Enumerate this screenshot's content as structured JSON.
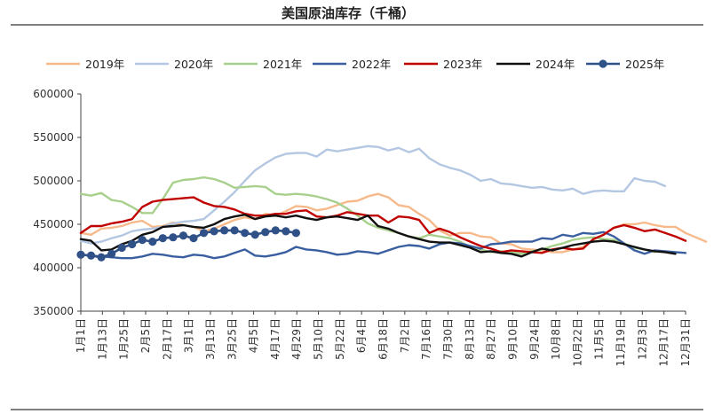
{
  "chart_data": {
    "type": "line",
    "title": "美国原油库存（千桶）",
    "xlabel": "",
    "ylabel": "",
    "ylim": [
      350000,
      600000
    ],
    "yticks": [
      350000,
      400000,
      450000,
      500000,
      550000,
      600000
    ],
    "ytick_labels": [
      "350000",
      "400000",
      "450000",
      "500000",
      "550000",
      "600000"
    ],
    "xtick_labels": [
      "1月1日",
      "1月13日",
      "1月25日",
      "2月5日",
      "2月17日",
      "3月1日",
      "3月13日",
      "3月25日",
      "4月5日",
      "4月17日",
      "4月29日",
      "5月10日",
      "5月22日",
      "6月4日",
      "6月18日",
      "7月2日",
      "7月16日",
      "7月30日",
      "8月13日",
      "8月27日",
      "9月10日",
      "9月24日",
      "10月8日",
      "10月22日",
      "11月5日",
      "11月19日",
      "12月3日",
      "12月17日",
      "12月31日"
    ],
    "x_unit": "week",
    "grid": false,
    "legend_position": "top",
    "series": [
      {
        "name": "2019年",
        "color": "#f7b98a",
        "marker": false,
        "values": [
          440000,
          438000,
          445000,
          446000,
          448000,
          452000,
          454000,
          447000,
          448000,
          452000,
          449000,
          447000,
          442000,
          445000,
          450000,
          455000,
          458000,
          456000,
          462000,
          460000,
          465000,
          471000,
          470000,
          466000,
          468000,
          472000,
          476000,
          477000,
          482000,
          485000,
          481000,
          472000,
          470000,
          462000,
          455000,
          443000,
          437000,
          440000,
          440000,
          436000,
          435000,
          428000,
          427000,
          422000,
          421000,
          420000,
          418000,
          418000,
          421000,
          424000,
          432000,
          438000,
          446000,
          450000,
          450000,
          452000,
          449000,
          447000,
          447000,
          440000,
          435000,
          430000
        ]
      },
      {
        "name": "2020年",
        "color": "#b4c7e2",
        "marker": false,
        "values": [
          431000,
          428000,
          430000,
          434000,
          437000,
          442000,
          444000,
          445000,
          447000,
          451000,
          453000,
          454000,
          456000,
          466000,
          476000,
          487000,
          500000,
          512000,
          520000,
          527000,
          531000,
          532000,
          532000,
          528000,
          536000,
          534000,
          536000,
          538000,
          540000,
          539000,
          535000,
          538000,
          533000,
          537000,
          526000,
          519000,
          515000,
          512000,
          507000,
          500000,
          502000,
          497000,
          496000,
          494000,
          492000,
          493000,
          490000,
          489000,
          491000,
          485000,
          488000,
          489000,
          488000,
          488000,
          503000,
          500000,
          499000,
          494000
        ]
      },
      {
        "name": "2021年",
        "color": "#a8d08d",
        "marker": false,
        "values": [
          485000,
          483000,
          486000,
          478000,
          476000,
          470000,
          463000,
          463000,
          479000,
          498000,
          501000,
          502000,
          504000,
          502000,
          498000,
          492000,
          493000,
          494000,
          493000,
          485000,
          484000,
          485000,
          484000,
          482000,
          479000,
          475000,
          468000,
          460000,
          451000,
          446000,
          443000,
          440000,
          436000,
          434000,
          438000,
          436000,
          434000,
          430000,
          424000,
          421000,
          418000,
          419000,
          418000,
          416000,
          419000,
          421000,
          425000,
          428000,
          432000,
          434000,
          435000,
          433000,
          432000,
          428000,
          423000,
          421000,
          418000
        ]
      },
      {
        "name": "2022年",
        "color": "#3a5fa0",
        "marker": false,
        "values": [
          415000,
          414000,
          413000,
          412000,
          411000,
          411000,
          413000,
          416000,
          415000,
          413000,
          412000,
          415000,
          414000,
          411000,
          413000,
          417000,
          421000,
          414000,
          413000,
          415000,
          418000,
          424000,
          421000,
          420000,
          418000,
          415000,
          416000,
          419000,
          418000,
          416000,
          420000,
          424000,
          426000,
          425000,
          422000,
          427000,
          429000,
          428000,
          425000,
          422000,
          427000,
          428000,
          430000,
          430000,
          430000,
          434000,
          433000,
          438000,
          436000,
          440000,
          439000,
          441000,
          436000,
          428000,
          420000,
          416000,
          420000,
          419000,
          418000,
          417000
        ]
      },
      {
        "name": "2023年",
        "color": "#c00000",
        "marker": false,
        "values": [
          440000,
          448000,
          448000,
          451000,
          453000,
          456000,
          470000,
          476000,
          478000,
          479000,
          480000,
          481000,
          475000,
          471000,
          470000,
          467000,
          462000,
          460000,
          460000,
          462000,
          462000,
          465000,
          466000,
          459000,
          458000,
          460000,
          464000,
          462000,
          460000,
          460000,
          452000,
          459000,
          458000,
          455000,
          440000,
          445000,
          441000,
          435000,
          430000,
          425000,
          422000,
          418000,
          420000,
          419000,
          418000,
          417000,
          421000,
          423000,
          421000,
          422000,
          433000,
          438000,
          446000,
          449000,
          446000,
          442000,
          444000,
          440000,
          436000,
          431000
        ]
      },
      {
        "name": "2024年",
        "color": "#111111",
        "marker": false,
        "values": [
          433000,
          431000,
          420000,
          421000,
          427000,
          431000,
          438000,
          441000,
          447000,
          448000,
          449000,
          447000,
          446000,
          450000,
          456000,
          459000,
          461000,
          456000,
          459000,
          460000,
          458000,
          460000,
          457000,
          455000,
          458000,
          459000,
          457000,
          455000,
          460000,
          448000,
          445000,
          440000,
          436000,
          433000,
          430000,
          429000,
          429000,
          426000,
          423000,
          418000,
          419000,
          417000,
          416000,
          413000,
          418000,
          422000,
          420000,
          423000,
          426000,
          428000,
          430000,
          431000,
          430000,
          427000,
          424000,
          421000,
          419000,
          418000,
          416000
        ]
      },
      {
        "name": "2025年",
        "color": "#2f5188",
        "marker": true,
        "values": [
          415000,
          414000,
          412000,
          416000,
          423000,
          427000,
          432000,
          430000,
          434000,
          435000,
          437000,
          434000,
          440000,
          442000,
          443000,
          443000,
          440000,
          438000,
          441000,
          443000,
          442000,
          440000
        ]
      }
    ]
  }
}
